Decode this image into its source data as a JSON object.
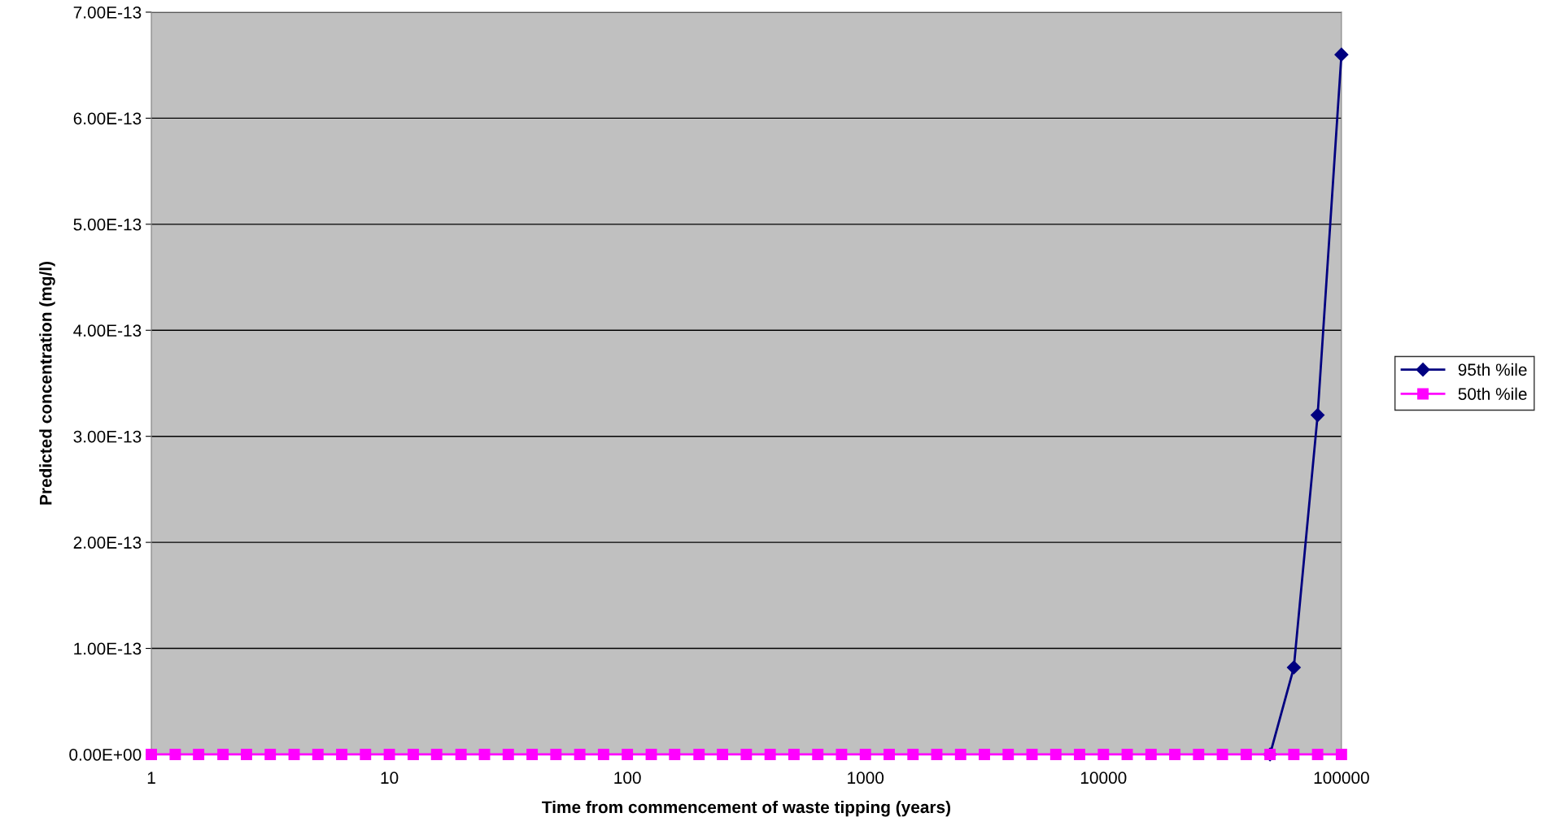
{
  "chart_data": {
    "type": "line",
    "xlabel": "Time from commencement of waste tipping (years)",
    "ylabel": "Predicted concentration (mg/l)",
    "log": "x",
    "xlim": [
      1,
      100000
    ],
    "xticks": [
      1,
      10,
      100,
      1000,
      10000,
      100000
    ],
    "ylim": [
      0,
      7e-13
    ],
    "yticks": [
      {
        "value": 0,
        "label": "0.00E+00"
      },
      {
        "value": 1e-13,
        "label": "1.00E-13"
      },
      {
        "value": 2e-13,
        "label": "2.00E-13"
      },
      {
        "value": 3e-13,
        "label": "3.00E-13"
      },
      {
        "value": 4e-13,
        "label": "4.00E-13"
      },
      {
        "value": 5e-13,
        "label": "5.00E-13"
      },
      {
        "value": 6e-13,
        "label": "6.00E-13"
      },
      {
        "value": 7e-13,
        "label": "7.00E-13"
      }
    ],
    "grid": "y",
    "legend": "right",
    "series": [
      {
        "name": "95th %ile",
        "color": "#000080",
        "marker": "diamond",
        "x": [
          50119,
          63096,
          79433,
          100000
        ],
        "values": [
          0,
          8.2e-14,
          3.2e-13,
          6.6e-13
        ]
      },
      {
        "name": "50th %ile",
        "color": "#ff00ff",
        "marker": "square",
        "x": [
          1,
          1.26,
          1.58,
          2,
          2.51,
          3.16,
          3.98,
          5.01,
          6.31,
          7.94,
          10,
          12.6,
          15.8,
          20,
          25.1,
          31.6,
          39.8,
          50.1,
          63.1,
          79.4,
          100,
          126,
          158,
          200,
          251,
          316,
          398,
          501,
          631,
          794,
          1000,
          1259,
          1585,
          1995,
          2512,
          3162,
          3981,
          5012,
          6310,
          7943,
          10000,
          12589,
          15849,
          19953,
          25119,
          31623,
          39811,
          50119,
          63096,
          79433,
          100000
        ],
        "values": [
          0,
          0,
          0,
          0,
          0,
          0,
          0,
          0,
          0,
          0,
          0,
          0,
          0,
          0,
          0,
          0,
          0,
          0,
          0,
          0,
          0,
          0,
          0,
          0,
          0,
          0,
          0,
          0,
          0,
          0,
          0,
          0,
          0,
          0,
          0,
          0,
          0,
          0,
          0,
          0,
          0,
          0,
          0,
          0,
          0,
          0,
          0,
          0,
          0,
          0,
          0
        ]
      }
    ]
  }
}
